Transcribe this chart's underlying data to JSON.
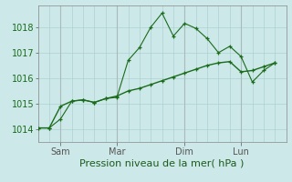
{
  "xlabel": "Pression niveau de la mer( hPa )",
  "bg_color": "#cce8e8",
  "line_color": "#1a6b1a",
  "ylim": [
    1013.5,
    1018.85
  ],
  "xlim": [
    0,
    22
  ],
  "yticks": [
    1014,
    1015,
    1016,
    1017,
    1018
  ],
  "xtick_positions": [
    2,
    7,
    13,
    18
  ],
  "xtick_labels": [
    "Sam",
    "Mar",
    "Dim",
    "Lun"
  ],
  "x_grid_positions": [
    0,
    1,
    2,
    3,
    4,
    5,
    6,
    7,
    8,
    9,
    10,
    11,
    12,
    13,
    14,
    15,
    16,
    17,
    18,
    19,
    20,
    21,
    22
  ],
  "vline_positions": [
    2,
    7,
    13,
    18
  ],
  "line1_x": [
    0,
    1,
    2,
    3,
    4,
    5,
    6,
    7,
    8,
    9,
    10,
    11,
    12,
    13,
    14,
    15,
    16,
    17,
    18,
    19,
    20,
    21
  ],
  "line1_y": [
    1014.05,
    1014.05,
    1014.4,
    1015.1,
    1015.15,
    1015.05,
    1015.2,
    1015.25,
    1016.7,
    1017.2,
    1018.0,
    1018.55,
    1017.65,
    1018.15,
    1017.95,
    1017.55,
    1017.0,
    1017.25,
    1016.85,
    1015.85,
    1016.3,
    1016.6
  ],
  "line2_x": [
    0,
    1,
    2,
    3,
    4,
    5,
    6,
    7,
    8,
    9,
    10,
    11,
    12,
    13,
    14,
    15,
    16,
    17,
    18,
    19,
    20,
    21
  ],
  "line2_y": [
    1014.05,
    1014.05,
    1014.9,
    1015.1,
    1015.15,
    1015.05,
    1015.2,
    1015.3,
    1015.5,
    1015.6,
    1015.75,
    1015.9,
    1016.05,
    1016.2,
    1016.35,
    1016.5,
    1016.6,
    1016.65,
    1016.25,
    1016.3,
    1016.45,
    1016.6
  ],
  "xlabel_fontsize": 8,
  "tick_fontsize": 7,
  "marker_size": 3.0,
  "lw1": 0.8,
  "lw2": 1.0
}
